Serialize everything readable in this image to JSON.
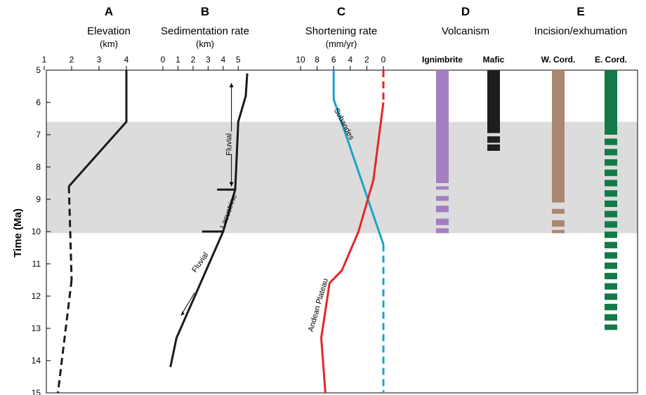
{
  "chart_data": {
    "type": "line",
    "ylabel": "Time (Ma)",
    "ylim": [
      15,
      5
    ],
    "yticks": [
      "5",
      "6",
      "7",
      "8",
      "9",
      "10",
      "11",
      "12",
      "13",
      "14",
      "15"
    ],
    "shaded_band": {
      "from": 6.6,
      "to": 10.05,
      "color": "#dcdcdc"
    },
    "panels": [
      {
        "letter": "A",
        "title": "Elevation",
        "unit": "(km)",
        "xlim": [
          1,
          4
        ],
        "xticks": [
          "1",
          "2",
          "3",
          "4"
        ],
        "series": [
          {
            "style": "solid",
            "color": "#1a1a1a",
            "points": [
              [
                4,
                5.0
              ],
              [
                4,
                6.6
              ],
              [
                1.9,
                8.6
              ]
            ]
          },
          {
            "style": "dashed",
            "color": "#1a1a1a",
            "points": [
              [
                1.9,
                8.6
              ],
              [
                2.0,
                11.5
              ]
            ]
          },
          {
            "style": "dashed",
            "color": "#1a1a1a",
            "points": [
              [
                2.0,
                11.5
              ],
              [
                1.5,
                15.0
              ]
            ]
          }
        ]
      },
      {
        "letter": "B",
        "title": "Sedimentation rate",
        "unit": "(km)",
        "xlim": [
          0,
          5.5
        ],
        "xticks": [
          "0",
          "1",
          "2",
          "3",
          "4",
          "5"
        ],
        "series": [
          {
            "style": "solid",
            "color": "#1a1a1a",
            "points": [
              [
                5.6,
                5.1
              ],
              [
                5.5,
                5.8
              ],
              [
                5.0,
                6.6
              ],
              [
                4.8,
                8.7
              ],
              [
                4.0,
                10.0
              ],
              [
                0.9,
                13.3
              ],
              [
                0.5,
                14.2
              ]
            ]
          },
          {
            "style": "solid",
            "color": "#1a1a1a",
            "points": [
              [
                3.6,
                8.7
              ],
              [
                4.8,
                8.7
              ]
            ]
          },
          {
            "style": "solid",
            "color": "#1a1a1a",
            "points": [
              [
                2.6,
                10.0
              ],
              [
                4.0,
                10.0
              ]
            ]
          }
        ],
        "annotations": [
          {
            "text": "Fluvial",
            "x": 4.55,
            "y": 7.3,
            "rotate": -90
          },
          {
            "text": "Lacustrine",
            "x": 4.5,
            "y": 9.4,
            "rotate": -70
          },
          {
            "text": "Fluvial",
            "x": 2.6,
            "y": 11.0,
            "rotate": -55
          }
        ]
      },
      {
        "letter": "C",
        "title": "Shortening rate",
        "unit": "(mm/yr)",
        "xlim": [
          10,
          0
        ],
        "xticks": [
          "10",
          "8",
          "6",
          "4",
          "2",
          "0"
        ],
        "series": [
          {
            "name": "Subandes",
            "style": "solid",
            "color": "#1ba3c6",
            "points": [
              [
                6,
                5.0
              ],
              [
                6,
                5.9
              ],
              [
                0,
                10.4
              ]
            ]
          },
          {
            "name": "Subandes",
            "style": "dashed",
            "color": "#1ba3c6",
            "points": [
              [
                0,
                10.4
              ],
              [
                0,
                15.0
              ]
            ]
          },
          {
            "name": "Andean Plateau",
            "style": "dashed",
            "color": "#e3262e",
            "points": [
              [
                0,
                5.0
              ],
              [
                0,
                6.0
              ]
            ]
          },
          {
            "name": "Andean Plateau",
            "style": "solid",
            "color": "#e3262e",
            "points": [
              [
                0,
                6.0
              ],
              [
                1.2,
                8.4
              ],
              [
                3.0,
                10.0
              ],
              [
                5.0,
                11.2
              ],
              [
                6.5,
                11.6
              ],
              [
                7.5,
                13.3
              ],
              [
                7.0,
                15.0
              ]
            ]
          }
        ],
        "annotations": [
          {
            "text": "Subandes",
            "x": 5.0,
            "y": 6.7,
            "rotate": 62
          },
          {
            "text": "Andean Plateau",
            "x": 7.6,
            "y": 12.3,
            "rotate": -74
          }
        ]
      },
      {
        "letter": "D",
        "title": "Volcanism",
        "unit": "",
        "bars": [
          {
            "label": "Ignimbrite",
            "color": "#a47fc0",
            "solid": [
              5.0,
              8.5
            ],
            "segments": [
              [
                8.6,
                8.7
              ],
              [
                8.9,
                9.05
              ],
              [
                9.2,
                9.4
              ],
              [
                9.6,
                9.8
              ],
              [
                9.9,
                10.05
              ]
            ]
          },
          {
            "label": "Mafic",
            "color": "#1e1e1e",
            "solid": [
              5.0,
              6.95
            ],
            "segments": [
              [
                7.05,
                7.25
              ],
              [
                7.3,
                7.5
              ]
            ]
          }
        ]
      },
      {
        "letter": "E",
        "title": "Incision/exhumation",
        "unit": "",
        "bars": [
          {
            "label": "W. Cord.",
            "color": "#aa8772",
            "solid": [
              5.0,
              9.1
            ],
            "segments": [
              [
                9.3,
                9.45
              ],
              [
                9.65,
                9.85
              ],
              [
                9.95,
                10.05
              ]
            ]
          },
          {
            "label": "E. Cord.",
            "color": "#137a47",
            "solid": [
              5.0,
              7.0
            ],
            "dash_from": 7.0,
            "dash_to": 13.05,
            "dash_period": 0.32,
            "dash_len": 0.2
          }
        ]
      }
    ]
  }
}
